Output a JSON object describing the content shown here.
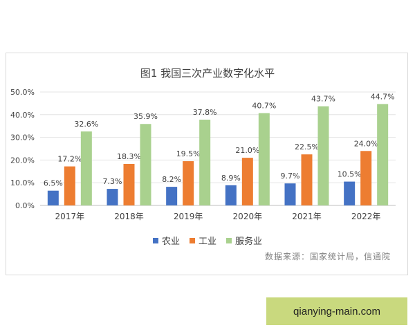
{
  "chart_data": {
    "type": "bar",
    "title": "图1 我国三次产业数字化水平",
    "categories": [
      "2017年",
      "2018年",
      "2019年",
      "2020年",
      "2021年",
      "2022年"
    ],
    "series": [
      {
        "name": "农业",
        "color": "#4472c4",
        "values": [
          6.5,
          7.3,
          8.2,
          8.9,
          9.7,
          10.5
        ],
        "labels": [
          "6.5%",
          "7.3%",
          "8.2%",
          "8.9%",
          "9.7%",
          "10.5%"
        ]
      },
      {
        "name": "工业",
        "color": "#ed7d31",
        "values": [
          17.2,
          18.3,
          19.5,
          21.0,
          22.5,
          24.0
        ],
        "labels": [
          "17.2%",
          "18.3%",
          "19.5%",
          "21.0%",
          "22.5%",
          "24.0%"
        ]
      },
      {
        "name": "服务业",
        "color": "#a9d18e",
        "values": [
          32.6,
          35.9,
          37.8,
          40.7,
          43.7,
          44.7
        ],
        "labels": [
          "32.6%",
          "35.9%",
          "37.8%",
          "40.7%",
          "43.7%",
          "44.7%"
        ]
      }
    ],
    "yticks": [
      "0.0%",
      "10.0%",
      "20.0%",
      "30.0%",
      "40.0%",
      "50.0%"
    ],
    "ylim": [
      0,
      50
    ],
    "grid": true,
    "legend": "bottom"
  },
  "source": "数据来源：国家统计局，信通院",
  "watermark": "qianying-main.com"
}
